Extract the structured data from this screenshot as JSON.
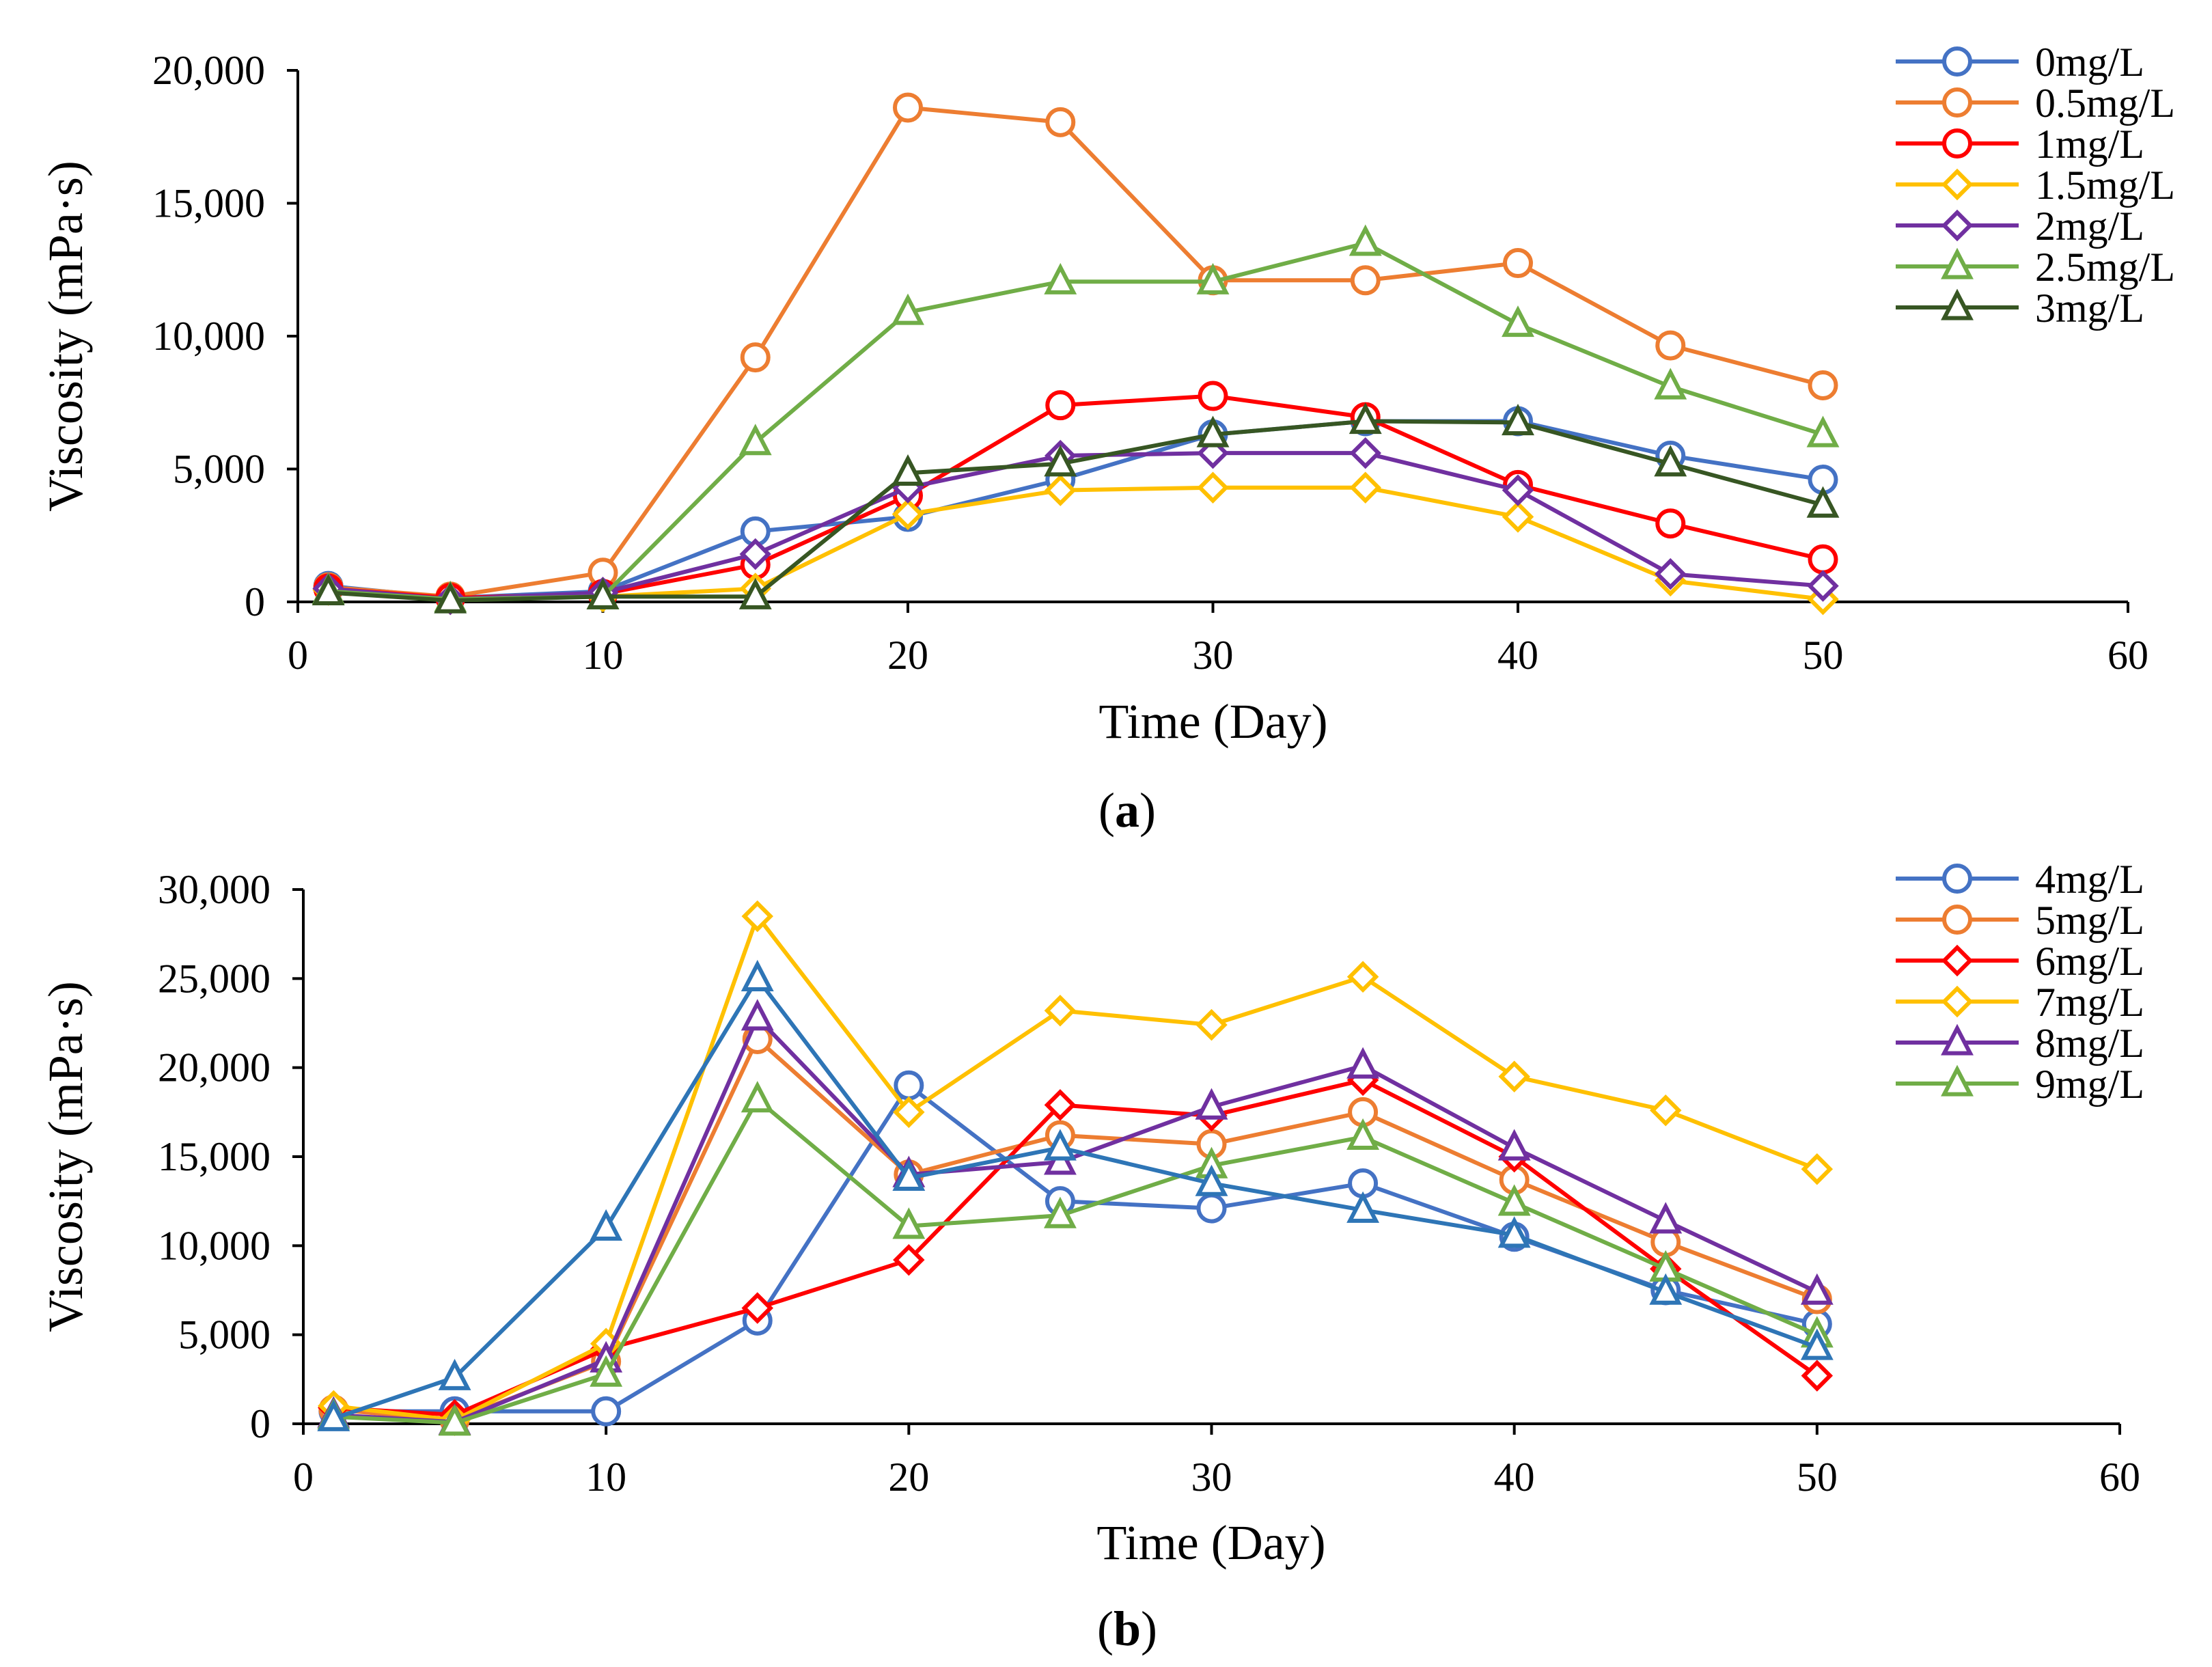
{
  "chart_data": [
    {
      "panel_label": "a",
      "type": "line",
      "xlabel": "Time (Day)",
      "ylabel": "Viscosity (mPa·s)",
      "xlim": [
        0,
        60
      ],
      "ylim": [
        0,
        20000
      ],
      "x_ticks": [
        "0",
        "10",
        "20",
        "30",
        "40",
        "50",
        "60"
      ],
      "y_ticks": [
        "0",
        "5,000",
        "10,000",
        "15,000",
        "20,000"
      ],
      "legend_position": "top-right",
      "x": [
        1,
        5,
        10,
        15,
        20,
        25,
        30,
        35,
        40,
        45,
        50
      ],
      "series": [
        {
          "name": "0mg/L",
          "color": "#4472C4",
          "marker": "circle",
          "values": [
            600,
            150,
            400,
            2650,
            3200,
            4600,
            6300,
            6800,
            6800,
            5500,
            4600
          ]
        },
        {
          "name": "0.5mg/L",
          "color": "#ED7D31",
          "marker": "circle",
          "values": [
            550,
            200,
            1100,
            9200,
            18600,
            18050,
            12100,
            12100,
            12750,
            9650,
            8150
          ]
        },
        {
          "name": "1mg/L",
          "color": "#FF0000",
          "marker": "circle",
          "values": [
            500,
            150,
            300,
            1400,
            4000,
            7400,
            7750,
            6950,
            4400,
            2950,
            1600
          ]
        },
        {
          "name": "1.5mg/L",
          "color": "#FFC000",
          "marker": "diamond",
          "values": [
            450,
            100,
            200,
            500,
            3300,
            4200,
            4300,
            4300,
            3200,
            800,
            100
          ]
        },
        {
          "name": "2mg/L",
          "color": "#7030A0",
          "marker": "diamond",
          "values": [
            500,
            100,
            350,
            1800,
            4300,
            5500,
            5600,
            5600,
            4200,
            1050,
            600
          ]
        },
        {
          "name": "2.5mg/L",
          "color": "#70AD47",
          "marker": "triangle",
          "values": [
            400,
            100,
            200,
            6000,
            10900,
            12050,
            12050,
            13500,
            10450,
            8100,
            6300
          ]
        },
        {
          "name": "3mg/L",
          "color": "#375623",
          "marker": "triangle",
          "values": [
            350,
            50,
            200,
            200,
            4850,
            5200,
            6300,
            6800,
            6750,
            5200,
            3650
          ]
        }
      ]
    },
    {
      "panel_label": "b",
      "type": "line",
      "xlabel": "Time (Day)",
      "ylabel": "Viscosity (mPa·s)",
      "xlim": [
        0,
        60
      ],
      "ylim": [
        0,
        30000
      ],
      "x_ticks": [
        "0",
        "10",
        "20",
        "30",
        "40",
        "50",
        "60"
      ],
      "y_ticks": [
        "0",
        "5,000",
        "10,000",
        "15,000",
        "20,000",
        "25,000",
        "30,000"
      ],
      "legend_position": "top-right",
      "x": [
        1,
        5,
        10,
        15,
        20,
        25,
        30,
        35,
        40,
        45,
        50
      ],
      "series": [
        {
          "name": "4mg/L",
          "color": "#4472C4",
          "marker": "circle",
          "values": [
            700,
            700,
            700,
            5800,
            19000,
            12500,
            12100,
            13500,
            10500,
            7500,
            5600
          ]
        },
        {
          "name": "5mg/L",
          "color": "#ED7D31",
          "marker": "circle",
          "values": [
            800,
            200,
            3500,
            21600,
            14000,
            16200,
            15700,
            17500,
            13700,
            10200,
            7000
          ]
        },
        {
          "name": "6mg/L",
          "color": "#FF0000",
          "marker": "diamond",
          "values": [
            900,
            500,
            4200,
            6500,
            9200,
            17900,
            17300,
            19300,
            15000,
            8700,
            2700
          ]
        },
        {
          "name": "7mg/L",
          "color": "#FFC000",
          "marker": "diamond",
          "values": [
            1000,
            200,
            4500,
            28500,
            17500,
            23200,
            22400,
            25100,
            19500,
            17600,
            14300
          ]
        },
        {
          "name": "8mg/L",
          "color": "#7030A0",
          "marker": "triangle",
          "values": [
            500,
            100,
            3600,
            22800,
            14000,
            14700,
            17800,
            20100,
            15500,
            11400,
            7400
          ]
        },
        {
          "name": "9mg/L",
          "color": "#70AD47",
          "marker": "triangle",
          "values": [
            400,
            50,
            2800,
            18200,
            11100,
            11700,
            14500,
            16100,
            12400,
            8700,
            5000
          ]
        },
        {
          "name": "",
          "color": "#2E75B6",
          "marker": "triangle",
          "values": [
            300,
            2600,
            11000,
            25000,
            13800,
            15500,
            13500,
            12000,
            10600,
            7400,
            4300
          ]
        }
      ]
    }
  ]
}
